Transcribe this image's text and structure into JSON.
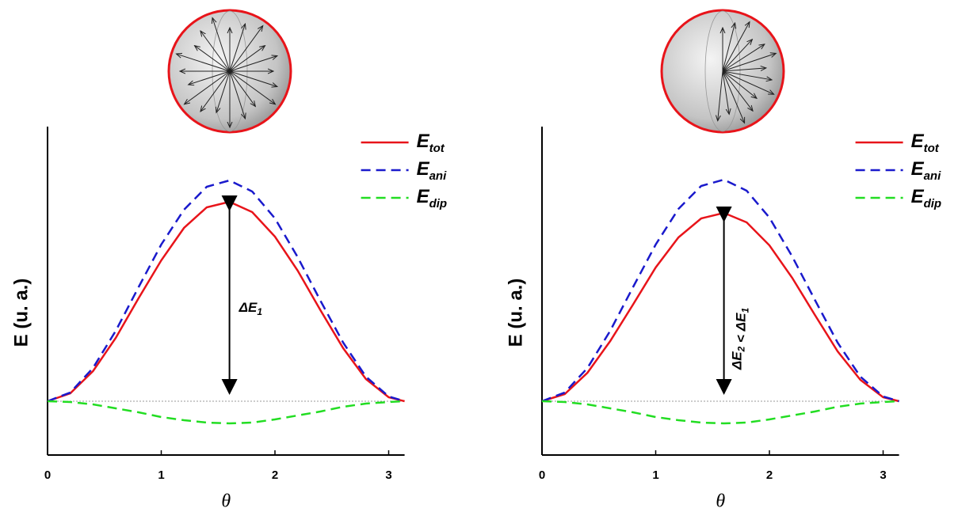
{
  "chart_data": [
    {
      "type": "line",
      "x_label": "θ",
      "y_label": "E (u. a.)",
      "x": [
        0,
        0.2,
        0.4,
        0.6,
        0.8,
        1.0,
        1.2,
        1.4,
        1.6,
        1.8,
        2.0,
        2.2,
        2.4,
        2.6,
        2.8,
        3.0,
        3.14
      ],
      "series": [
        {
          "name": "E",
          "subscript": "tot",
          "color": "#e8141a",
          "style": "solid",
          "values": [
            0,
            0.1,
            0.38,
            0.8,
            1.3,
            1.78,
            2.19,
            2.45,
            2.52,
            2.39,
            2.08,
            1.65,
            1.15,
            0.67,
            0.28,
            0.05,
            0
          ]
        },
        {
          "name": "E",
          "subscript": "ani",
          "color": "#1a1acc",
          "style": "dashed",
          "values": [
            0,
            0.11,
            0.42,
            0.89,
            1.44,
            1.98,
            2.42,
            2.71,
            2.79,
            2.65,
            2.31,
            1.82,
            1.27,
            0.74,
            0.31,
            0.06,
            0
          ]
        },
        {
          "name": "E",
          "subscript": "dip",
          "color": "#22dd22",
          "style": "dashed",
          "values": [
            0,
            -0.01,
            -0.04,
            -0.09,
            -0.14,
            -0.2,
            -0.24,
            -0.27,
            -0.28,
            -0.27,
            -0.23,
            -0.18,
            -0.13,
            -0.07,
            -0.03,
            -0.01,
            0
          ]
        }
      ],
      "annotation": [
        {
          "text": "ΔE",
          "sub": "1"
        }
      ],
      "xlim": [
        0,
        3.14
      ],
      "xticks": [
        0,
        1,
        2,
        3
      ],
      "ylim": [
        -0.68,
        3.47
      ],
      "legend": "upper right"
    },
    {
      "type": "line",
      "x_label": "θ",
      "y_label": "E (u. a.)",
      "x": [
        0,
        0.2,
        0.4,
        0.6,
        0.8,
        1.0,
        1.2,
        1.4,
        1.6,
        1.8,
        2.0,
        2.2,
        2.4,
        2.6,
        2.8,
        3.0,
        3.14
      ],
      "series": [
        {
          "name": "E",
          "subscript": "tot",
          "color": "#e8141a",
          "style": "solid",
          "values": [
            0,
            0.09,
            0.36,
            0.76,
            1.22,
            1.69,
            2.07,
            2.31,
            2.38,
            2.26,
            1.97,
            1.56,
            1.09,
            0.63,
            0.27,
            0.05,
            0
          ]
        },
        {
          "name": "E",
          "subscript": "ani",
          "color": "#1a1acc",
          "style": "dashed",
          "values": [
            0,
            0.11,
            0.42,
            0.89,
            1.44,
            1.98,
            2.43,
            2.72,
            2.8,
            2.66,
            2.32,
            1.83,
            1.28,
            0.74,
            0.31,
            0.06,
            0
          ]
        },
        {
          "name": "E",
          "subscript": "dip",
          "color": "#22dd22",
          "style": "dashed",
          "values": [
            0,
            -0.01,
            -0.04,
            -0.09,
            -0.14,
            -0.2,
            -0.24,
            -0.27,
            -0.28,
            -0.27,
            -0.23,
            -0.18,
            -0.13,
            -0.07,
            -0.03,
            -0.01,
            0
          ]
        }
      ],
      "annotation": [
        {
          "text": "ΔE",
          "sub": "2"
        },
        {
          "text": " < ΔE",
          "sub": "1"
        }
      ],
      "xlim": [
        0,
        3.14
      ],
      "xticks": [
        0,
        1,
        2,
        3
      ],
      "ylim": [
        -0.68,
        3.47
      ],
      "legend": "upper right"
    }
  ]
}
